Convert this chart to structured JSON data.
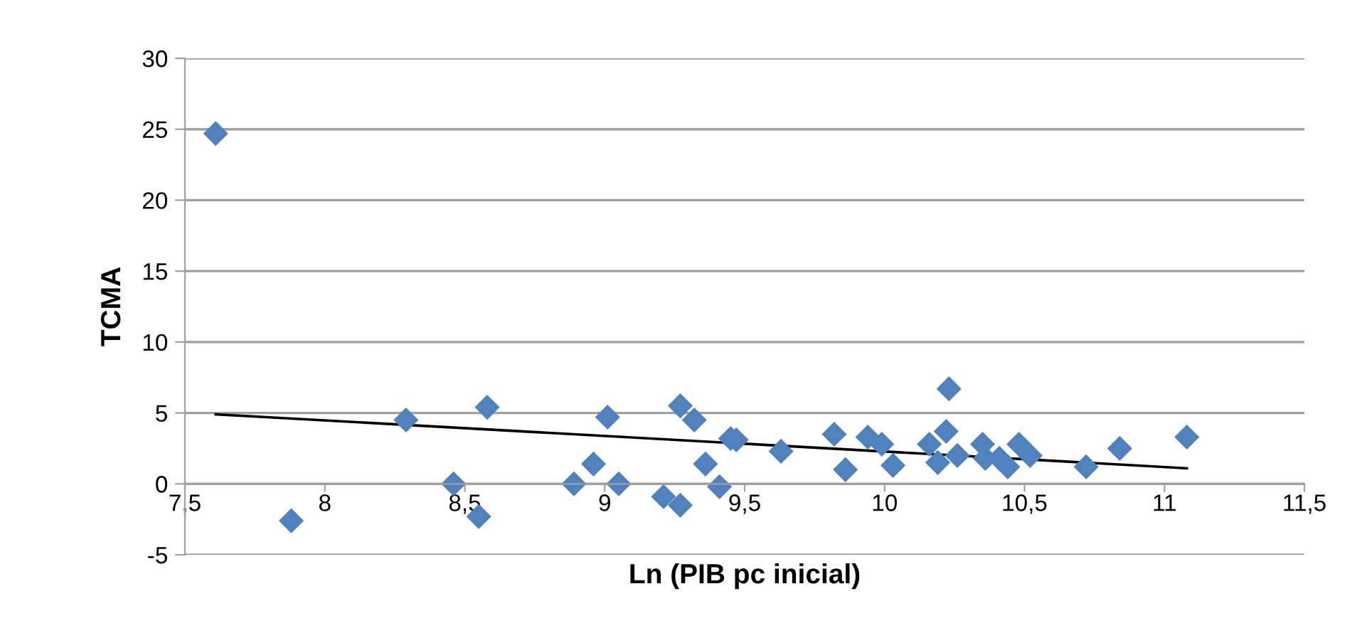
{
  "chart_data": {
    "type": "scatter",
    "xlabel": "Ln (PIB pc inicial)",
    "ylabel": "TCMA",
    "xlim": [
      7.5,
      11.5
    ],
    "ylim": [
      -5,
      30
    ],
    "xticks": [
      {
        "value": 7.5,
        "label": "7,5"
      },
      8,
      {
        "value": 8.5,
        "label": "8,5"
      },
      9,
      {
        "value": 9.5,
        "label": "9,5"
      },
      10,
      {
        "value": 10.5,
        "label": "10,5"
      },
      11,
      {
        "value": 11.5,
        "label": "11,5"
      }
    ],
    "yticks": [
      -5,
      0,
      5,
      10,
      15,
      20,
      25,
      30
    ],
    "grid": "y",
    "legend": false,
    "series": [
      {
        "type": "scatter",
        "marker": "diamond",
        "color": "#4f81bd",
        "x": [
          7.61,
          7.88,
          8.29,
          8.46,
          8.55,
          8.58,
          8.89,
          8.96,
          9.01,
          9.05,
          9.21,
          9.27,
          9.27,
          9.32,
          9.36,
          9.41,
          9.45,
          9.47,
          9.63,
          9.82,
          9.86,
          9.94,
          9.99,
          10.03,
          10.16,
          10.19,
          10.22,
          10.23,
          10.26,
          10.35,
          10.36,
          10.41,
          10.44,
          10.48,
          10.52,
          10.72,
          10.84,
          11.08
        ],
        "values": [
          24.7,
          -2.6,
          4.5,
          0,
          -2.3,
          5.4,
          0,
          1.4,
          4.7,
          0,
          -0.9,
          5.5,
          -1.5,
          4.5,
          1.4,
          -0.2,
          3.2,
          3.1,
          2.3,
          3.5,
          1.0,
          3.3,
          2.8,
          1.3,
          2.8,
          1.5,
          3.7,
          6.7,
          2.0,
          2.8,
          1.8,
          1.8,
          1.2,
          2.8,
          2.0,
          1.2,
          2.5,
          3.3
        ]
      },
      {
        "type": "line",
        "color": "#000000",
        "x": [
          7.61,
          11.08
        ],
        "values": [
          4.9,
          1.1
        ]
      }
    ]
  }
}
